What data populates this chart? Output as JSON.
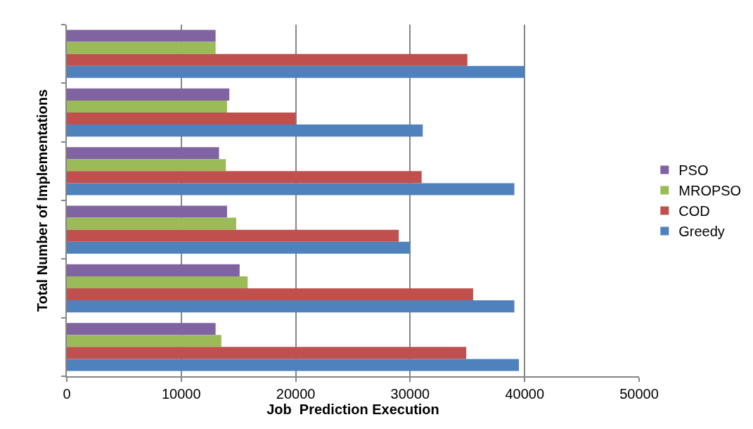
{
  "chart_data": {
    "type": "bar",
    "orientation": "horizontal",
    "xlabel": "Job  Prediction Execution",
    "ylabel": "Total Number of Implementations",
    "categories": [
      null,
      null,
      null,
      null,
      null,
      null
    ],
    "series": [
      {
        "name": "PSO",
        "color": "#8064a2",
        "values": [
          13000,
          14200,
          13300,
          14000,
          15100,
          13000
        ]
      },
      {
        "name": "MROPSO",
        "color": "#9bbb59",
        "values": [
          13000,
          14000,
          13900,
          14800,
          15800,
          13500
        ]
      },
      {
        "name": "COD",
        "color": "#c0504d",
        "values": [
          35000,
          20000,
          31000,
          29000,
          35500,
          34900
        ]
      },
      {
        "name": "Greedy",
        "color": "#4f81bd",
        "values": [
          40000,
          31100,
          39100,
          30000,
          39100,
          39500
        ]
      }
    ],
    "xlim": [
      0,
      50000
    ],
    "xticks": [
      0,
      10000,
      20000,
      30000,
      40000,
      50000
    ],
    "grid": "x",
    "legend": "right",
    "tick_labels": "x"
  }
}
